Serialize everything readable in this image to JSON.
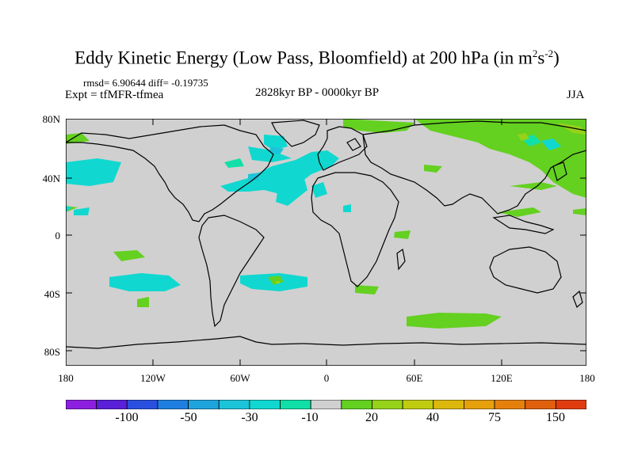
{
  "title": {
    "main": "Eddy Kinetic Energy (Low Pass, Bloomfield) at 200 hPa (in m",
    "sup1": "2",
    "mid": "s",
    "sup2": "-2",
    "close": ")"
  },
  "stats_text": "rmsd= 6.90644 diff= -0.19735",
  "expt_text": "Expt = tfMFR-tfmea",
  "period_text": "2828kyr BP - 0000kyr BP",
  "season_text": "JJA",
  "y_axis_labels": [
    "80N",
    "40N",
    "0",
    "40S",
    "80S"
  ],
  "x_axis_labels": [
    "180",
    "120W",
    "60W",
    "0",
    "60E",
    "120E",
    "180"
  ],
  "colorbar": {
    "labels": [
      "-100",
      "-50",
      "-30",
      "-10",
      "20",
      "40",
      "75",
      "150"
    ],
    "colors": [
      "#8c1fe0",
      "#5a1fd8",
      "#2a4fe0",
      "#1f7fe0",
      "#1ea4dc",
      "#1bc4d8",
      "#10d8d0",
      "#10e0a8",
      "#d0d0d0",
      "#64d020",
      "#96d21a",
      "#c0cc10",
      "#dcb80c",
      "#e6a00c",
      "#e6800c",
      "#e0600e",
      "#e03c10"
    ]
  },
  "colors": {
    "land_ocean": "#d0d0d0",
    "coast": "#000000"
  }
}
